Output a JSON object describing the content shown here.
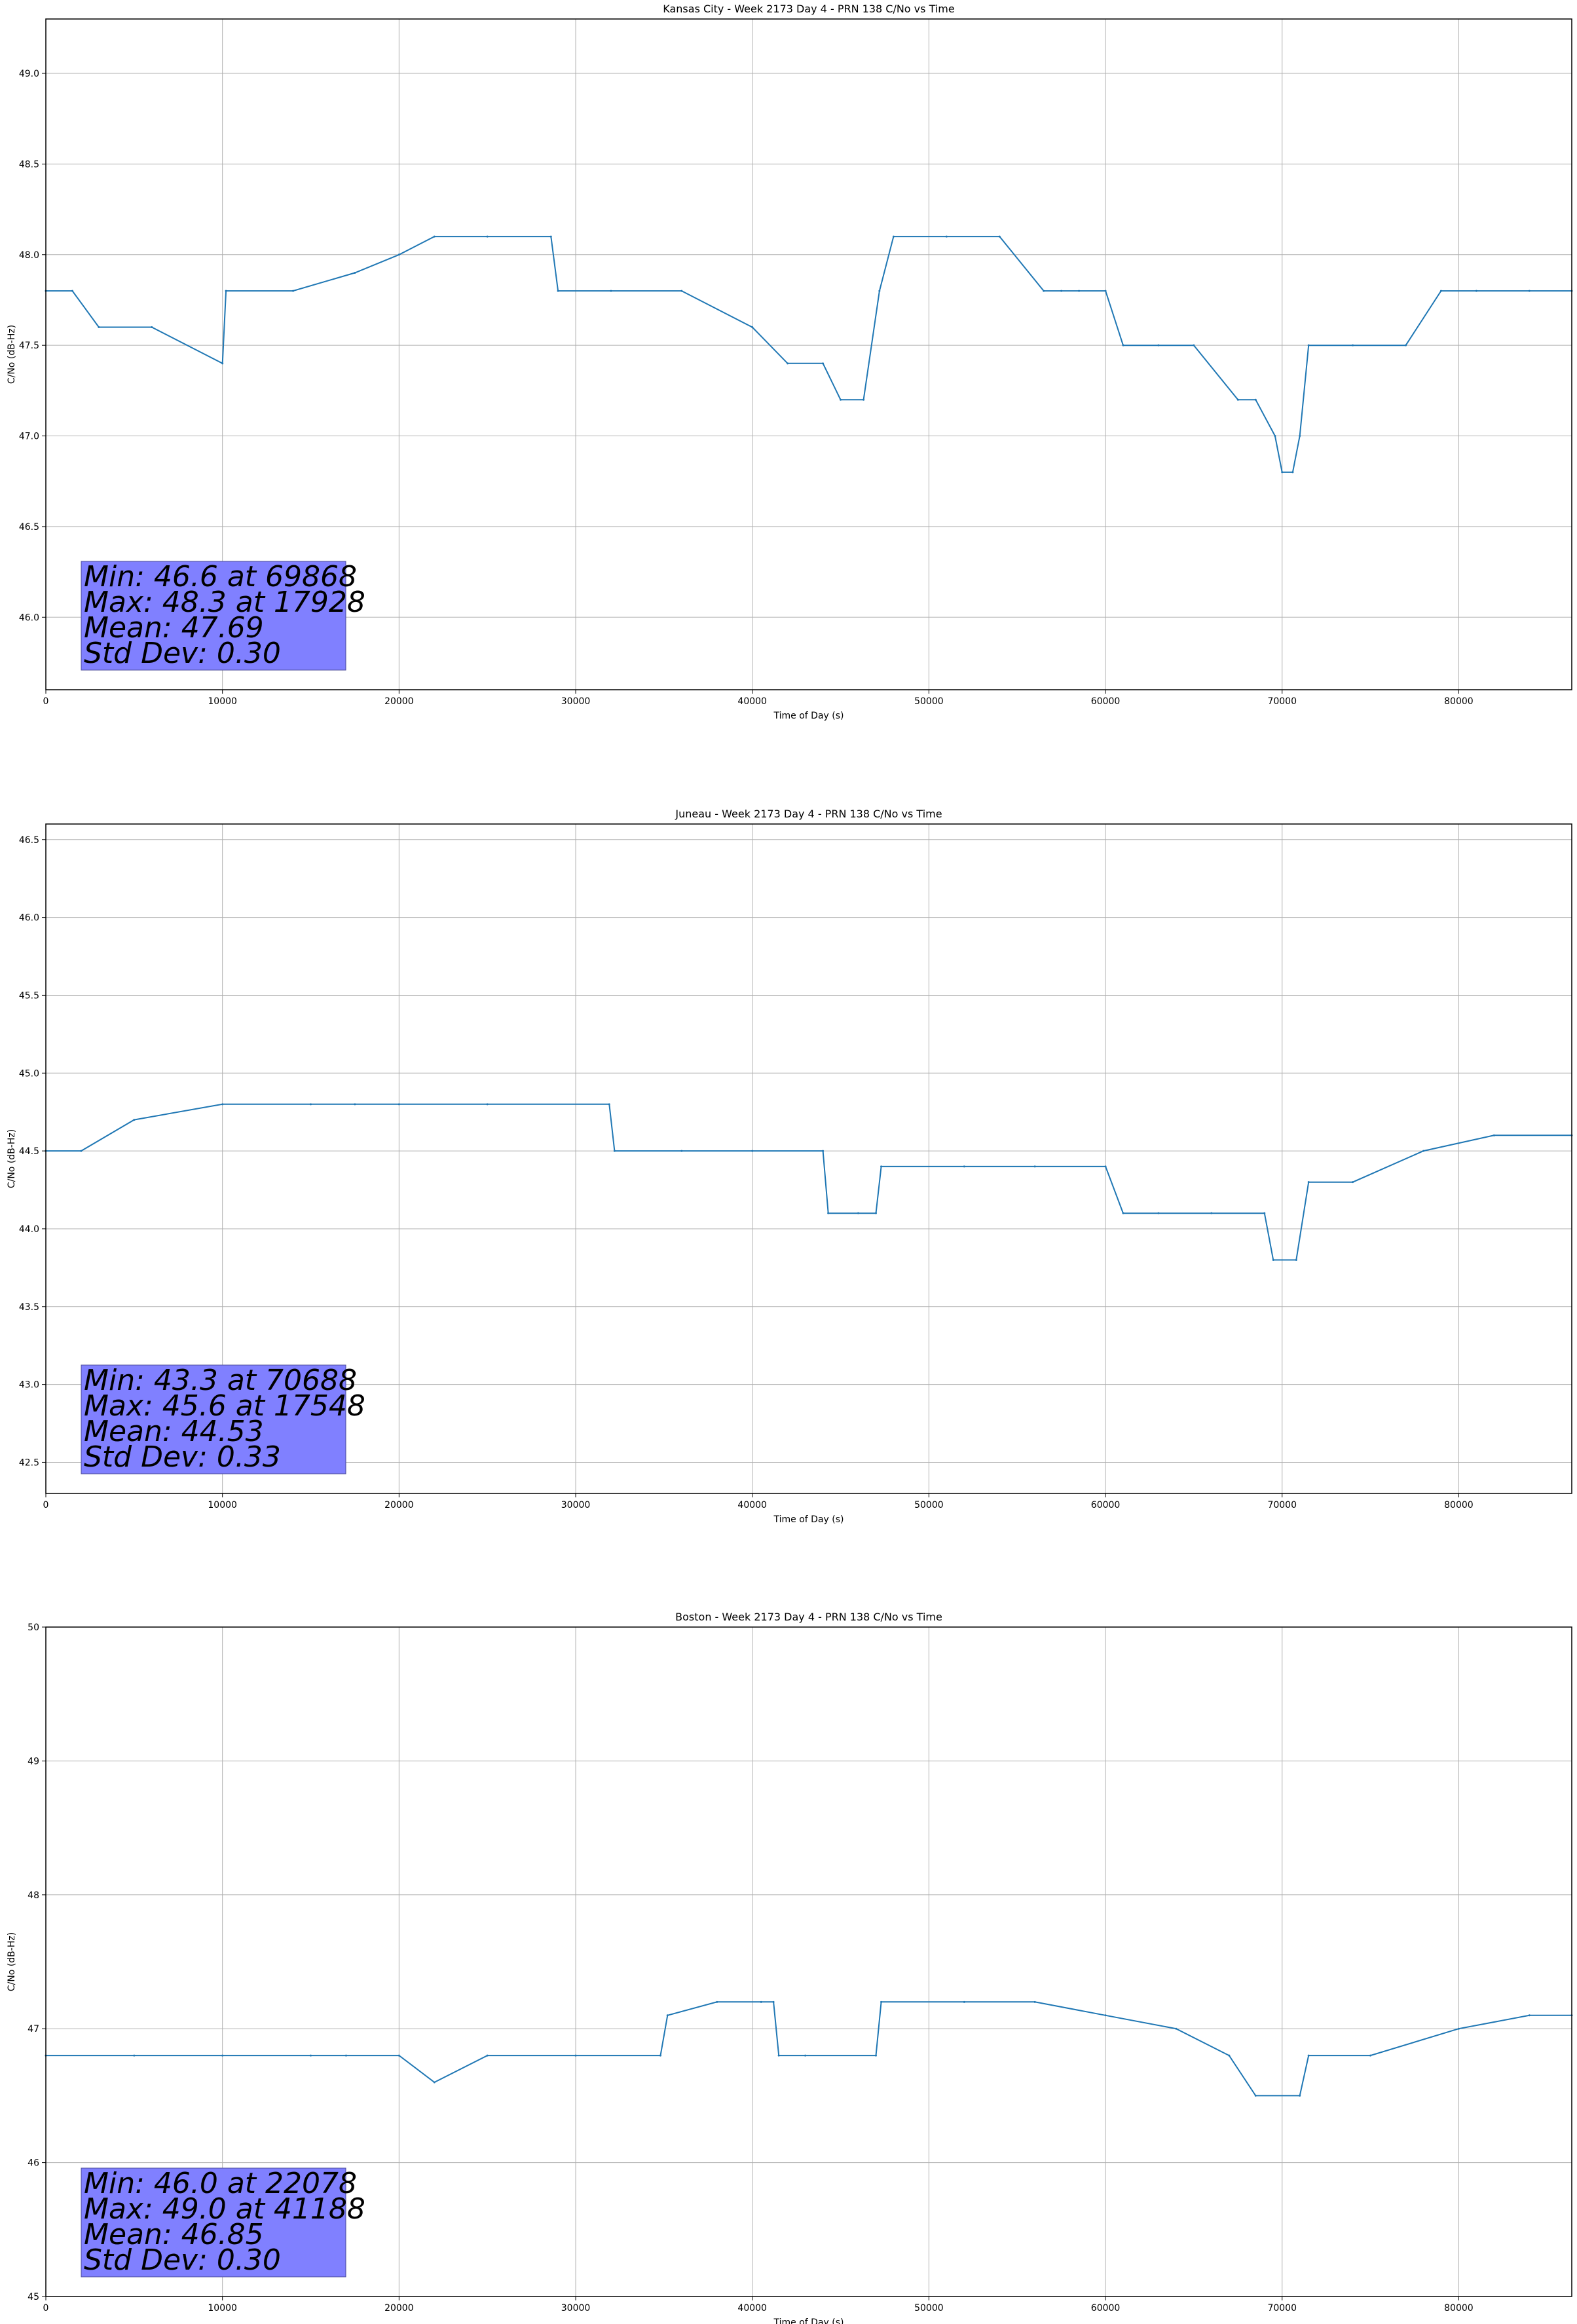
{
  "figure": {
    "panels": [
      {
        "title": "Kansas City - Week 2173 Day 4 - PRN 138 C/No vs Time",
        "xlabel": "Time of Day (s)",
        "ylabel": "C/No (dB-Hz)",
        "stats": [
          "Min: 46.6 at 69868",
          "Max: 48.3 at 17928",
          "Mean: 47.69",
          "Std Dev: 0.30"
        ]
      },
      {
        "title": "Juneau - Week 2173 Day 4 - PRN 138 C/No vs Time",
        "xlabel": "Time of Day (s)",
        "ylabel": "C/No (dB-Hz)",
        "stats": [
          "Min: 43.3 at 70688",
          "Max: 45.6 at 17548",
          "Mean: 44.53",
          "Std Dev: 0.33"
        ]
      },
      {
        "title": "Boston - Week 2173 Day 4 - PRN 138 C/No vs Time",
        "xlabel": "Time of Day (s)",
        "ylabel": "C/No (dB-Hz)",
        "stats": [
          "Min: 46.0 at 22078",
          "Max: 49.0 at 41188",
          "Mean: 46.85",
          "Std Dev: 0.30"
        ]
      }
    ],
    "colors": {
      "line": "#1f77b4",
      "stats_box": "#8080ff",
      "grid": "#b0b0b0"
    }
  },
  "chart_data": [
    {
      "type": "line",
      "title": "Kansas City - Week 2173 Day 4 - PRN 138 C/No vs Time",
      "xlabel": "Time of Day (s)",
      "ylabel": "C/No (dB-Hz)",
      "xlim": [
        0,
        86400
      ],
      "ylim": [
        45.6,
        49.3
      ],
      "xticks": [
        0,
        10000,
        20000,
        30000,
        40000,
        50000,
        60000,
        70000,
        80000
      ],
      "yticks": [
        "46.0",
        "46.5",
        "47.0",
        "47.5",
        "48.0",
        "48.5",
        "49.0"
      ],
      "grid": true,
      "series": [
        {
          "x": [
            0,
            1500,
            3000,
            6000,
            10000,
            10200,
            14000,
            17500,
            20000,
            22000,
            25000,
            28600,
            29000,
            32000,
            36000,
            40000,
            42000,
            44000,
            45000,
            46300,
            47200,
            48000,
            51000,
            54000,
            56500,
            57500,
            58500,
            60000,
            61000,
            63000,
            65000,
            67500,
            68500,
            69600,
            70000,
            70600,
            71000,
            71500,
            74000,
            77000,
            79000,
            81000,
            84000,
            86400
          ],
          "y": [
            47.8,
            47.8,
            47.6,
            47.6,
            47.4,
            47.8,
            47.8,
            47.9,
            48.0,
            48.1,
            48.1,
            48.1,
            47.8,
            47.8,
            47.8,
            47.6,
            47.4,
            47.4,
            47.2,
            47.2,
            47.8,
            48.1,
            48.1,
            48.1,
            47.8,
            47.8,
            47.8,
            47.8,
            47.5,
            47.5,
            47.5,
            47.2,
            47.2,
            47.0,
            46.8,
            46.8,
            47.0,
            47.5,
            47.5,
            47.5,
            47.8,
            47.8,
            47.8,
            47.8
          ]
        }
      ],
      "annotation": [
        "Min: 46.6 at 69868",
        "Max: 48.3 at 17928",
        "Mean: 47.69",
        "Std Dev: 0.30"
      ]
    },
    {
      "type": "line",
      "title": "Juneau - Week 2173 Day 4 - PRN 138 C/No vs Time",
      "xlabel": "Time of Day (s)",
      "ylabel": "C/No (dB-Hz)",
      "xlim": [
        0,
        86400
      ],
      "ylim": [
        42.3,
        46.6
      ],
      "xticks": [
        0,
        10000,
        20000,
        30000,
        40000,
        50000,
        60000,
        70000,
        80000
      ],
      "yticks": [
        "42.5",
        "43.0",
        "43.5",
        "44.0",
        "44.5",
        "45.0",
        "45.5",
        "46.0",
        "46.5"
      ],
      "grid": true,
      "series": [
        {
          "x": [
            0,
            2000,
            5000,
            10000,
            15000,
            17500,
            20000,
            25000,
            31900,
            32200,
            36000,
            40000,
            44000,
            44300,
            46000,
            47000,
            47300,
            52000,
            56000,
            60000,
            61000,
            63000,
            66000,
            69000,
            69500,
            70800,
            71500,
            74000,
            78000,
            82000,
            86400
          ],
          "y": [
            44.5,
            44.5,
            44.7,
            44.8,
            44.8,
            44.8,
            44.8,
            44.8,
            44.8,
            44.5,
            44.5,
            44.5,
            44.5,
            44.1,
            44.1,
            44.1,
            44.4,
            44.4,
            44.4,
            44.4,
            44.1,
            44.1,
            44.1,
            44.1,
            43.8,
            43.8,
            44.3,
            44.3,
            44.5,
            44.6,
            44.6
          ]
        }
      ],
      "annotation": [
        "Min: 43.3 at 70688",
        "Max: 45.6 at 17548",
        "Mean: 44.53",
        "Std Dev: 0.33"
      ]
    },
    {
      "type": "line",
      "title": "Boston - Week 2173 Day 4 - PRN 138 C/No vs Time",
      "xlabel": "Time of Day (s)",
      "ylabel": "C/No (dB-Hz)",
      "xlim": [
        0,
        86400
      ],
      "ylim": [
        45,
        50
      ],
      "xticks": [
        0,
        10000,
        20000,
        30000,
        40000,
        50000,
        60000,
        70000,
        80000
      ],
      "yticks": [
        "45",
        "46",
        "47",
        "48",
        "49",
        "50"
      ],
      "grid": true,
      "series": [
        {
          "x": [
            0,
            5000,
            10000,
            15000,
            17000,
            20000,
            22000,
            25000,
            30000,
            34800,
            35200,
            38000,
            40500,
            41200,
            41500,
            43000,
            47000,
            47300,
            52000,
            56000,
            60000,
            64000,
            67000,
            68500,
            71000,
            71500,
            75000,
            80000,
            84000,
            86400
          ],
          "y": [
            46.8,
            46.8,
            46.8,
            46.8,
            46.8,
            46.8,
            46.6,
            46.8,
            46.8,
            46.8,
            47.1,
            47.2,
            47.2,
            47.2,
            46.8,
            46.8,
            46.8,
            47.2,
            47.2,
            47.2,
            47.1,
            47.0,
            46.8,
            46.5,
            46.5,
            46.8,
            46.8,
            47.0,
            47.1,
            47.1
          ]
        }
      ],
      "annotation": [
        "Min: 46.0 at 22078",
        "Max: 49.0 at 41188",
        "Mean: 46.85",
        "Std Dev: 0.30"
      ]
    }
  ]
}
